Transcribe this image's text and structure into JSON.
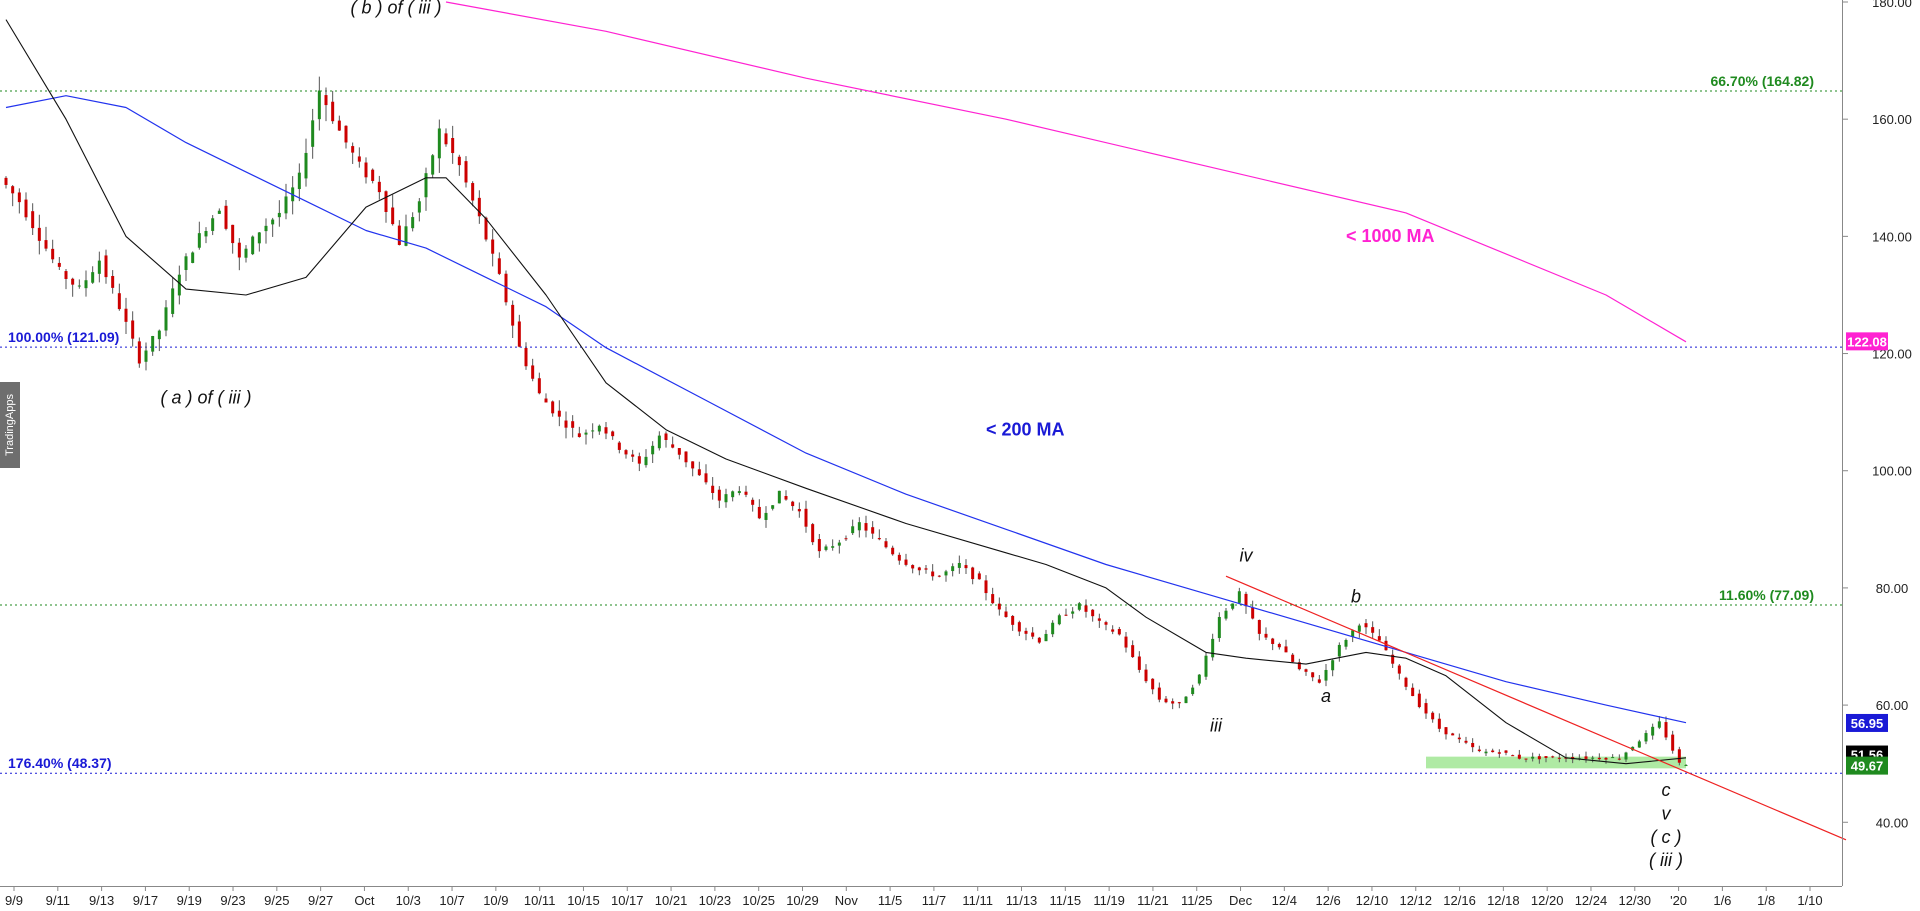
{
  "brand": "TradingApps",
  "chart_data": {
    "type": "candlestick",
    "ylim": [
      31,
      180
    ],
    "y_ticks": [
      "40.00",
      "60.00",
      "80.00",
      "100.00",
      "120.00",
      "140.00",
      "160.00",
      "180.00"
    ],
    "x_tick_labels": [
      "9/9",
      "9/11",
      "9/13",
      "9/17",
      "9/19",
      "9/23",
      "9/25",
      "9/27",
      "Oct",
      "10/3",
      "10/7",
      "10/9",
      "10/11",
      "10/15",
      "10/17",
      "10/21",
      "10/23",
      "10/25",
      "10/29",
      "Nov",
      "11/5",
      "11/7",
      "11/11",
      "11/13",
      "11/15",
      "11/19",
      "11/21",
      "11/25",
      "Dec",
      "12/4",
      "12/6",
      "12/10",
      "12/12",
      "12/16",
      "12/18",
      "12/20",
      "12/24",
      "12/30",
      "'20",
      "1/6",
      "1/8",
      "1/10"
    ],
    "price_path_days": [
      0,
      1,
      2,
      3,
      4,
      5,
      6,
      7,
      8,
      9,
      10,
      11,
      12,
      13,
      14,
      15,
      16,
      17,
      18,
      19,
      20,
      21,
      22,
      23,
      24,
      25,
      26,
      27,
      28,
      29,
      30,
      31,
      32,
      33,
      34,
      35,
      36,
      37,
      38,
      39,
      40,
      41,
      42,
      43,
      44,
      45,
      46,
      47,
      48,
      49,
      50,
      51,
      52,
      53,
      54,
      55,
      56,
      57,
      58,
      59,
      60,
      61,
      62,
      63,
      64,
      65,
      66,
      67,
      68,
      69,
      70,
      71,
      72,
      73,
      74,
      75,
      76,
      77,
      78,
      79,
      80,
      81,
      82,
      83,
      84
    ],
    "price_path": [
      150,
      146,
      140,
      134,
      131,
      136,
      128,
      119,
      124,
      134,
      140,
      145,
      136,
      141,
      144,
      150,
      165,
      158,
      152,
      148,
      139,
      146,
      158,
      152,
      143,
      133,
      121,
      113,
      109,
      106,
      108,
      104,
      101,
      106,
      103,
      99,
      95,
      97,
      92,
      96,
      93,
      86,
      88,
      91,
      88,
      85,
      83,
      82,
      84,
      81,
      76,
      73,
      71,
      75,
      77,
      74,
      72,
      66,
      61,
      60,
      65,
      75,
      79,
      72,
      70,
      66,
      64,
      70,
      74,
      71,
      65,
      60,
      56,
      54,
      52,
      52,
      51,
      51,
      51,
      51,
      51,
      51,
      54,
      57,
      50
    ],
    "ma_50_days": [
      0,
      3,
      6,
      9,
      12,
      15,
      18,
      21,
      22,
      24,
      27,
      30,
      33,
      36,
      40,
      45,
      50,
      52,
      55,
      57,
      60,
      62,
      65,
      68,
      70,
      72,
      75,
      78,
      81,
      84
    ],
    "ma_50": [
      177,
      160,
      140,
      131,
      130,
      133,
      145,
      150,
      150,
      143,
      130,
      115,
      107,
      102,
      97,
      91,
      86,
      84,
      80,
      75,
      69,
      68,
      67,
      69,
      68,
      65,
      57,
      51,
      50,
      51
    ],
    "ma_200_days": [
      0,
      3,
      6,
      9,
      12,
      15,
      18,
      21,
      24,
      27,
      30,
      35,
      40,
      45,
      50,
      55,
      60,
      65,
      70,
      75,
      80,
      84
    ],
    "ma_200": [
      162,
      164,
      162,
      156,
      151,
      146,
      141,
      138,
      133,
      128,
      121,
      112,
      103,
      96,
      90,
      84,
      79,
      74,
      69,
      64,
      60,
      57
    ],
    "ma_1000_days": [
      22,
      30,
      40,
      50,
      60,
      70,
      80,
      84
    ],
    "ma_1000": [
      180,
      175,
      167,
      160,
      152,
      144,
      130,
      122
    ],
    "trendline": {
      "start": [
        61,
        82
      ],
      "end": [
        92,
        37
      ]
    },
    "support_zone": {
      "x_range": [
        71,
        84
      ],
      "y_range": [
        49.2,
        51.2
      ]
    },
    "fib_levels": [
      {
        "label": "66.70% (164.82)",
        "value": 164.82,
        "color": "#1f8a1f",
        "label_side": "right"
      },
      {
        "label": "100.00% (121.09)",
        "value": 121.09,
        "color": "#1a1ad6",
        "label_side": "left"
      },
      {
        "label": "11.60% (77.09)",
        "value": 77.09,
        "color": "#1f8a1f",
        "label_side": "right"
      },
      {
        "label": "176.40% (48.37)",
        "value": 48.37,
        "color": "#1a1ad6",
        "label_side": "left"
      }
    ],
    "ma_labels": [
      {
        "label": "< 1000 MA",
        "color": "#ff22d2",
        "day": 67,
        "value": 139
      },
      {
        "label": "< 200 MA",
        "color": "#1a1ad6",
        "day": 49,
        "value": 106
      }
    ],
    "price_tags": [
      {
        "text": "122.08",
        "value": 122.08,
        "bg": "#ff22d2"
      },
      {
        "text": "56.95",
        "value": 56.95,
        "bg": "#1a1ad6"
      },
      {
        "text": "51.56",
        "value": 51.56,
        "bg": "#000000"
      },
      {
        "text": "49.67",
        "value": 49.67,
        "bg": "#1f8a1f"
      }
    ],
    "wave_labels": [
      {
        "text": "( b ) of ( iii )",
        "day": 19.5,
        "value": 178
      },
      {
        "text": "( a ) of ( iii )",
        "day": 10,
        "value": 111.5
      },
      {
        "text": "iii",
        "day": 60.5,
        "value": 55.5
      },
      {
        "text": "iv",
        "day": 62,
        "value": 84.5
      },
      {
        "text": "a",
        "day": 66,
        "value": 60.5
      },
      {
        "text": "b",
        "day": 67.5,
        "value": 77.5
      },
      {
        "text": "c",
        "day": 83,
        "value": 44.5
      },
      {
        "text": "v",
        "day": 83,
        "value": 40.5
      },
      {
        "text": "( c )",
        "day": 83,
        "value": 36.5
      },
      {
        "text": "( iii )",
        "day": 83,
        "value": 32.5
      }
    ],
    "colors": {
      "up": "#1f8a1f",
      "down": "#cc0000",
      "ma50": "#111111",
      "ma200": "#2233ee",
      "ma1000": "#ff22d2",
      "trend": "#ee2222"
    }
  }
}
